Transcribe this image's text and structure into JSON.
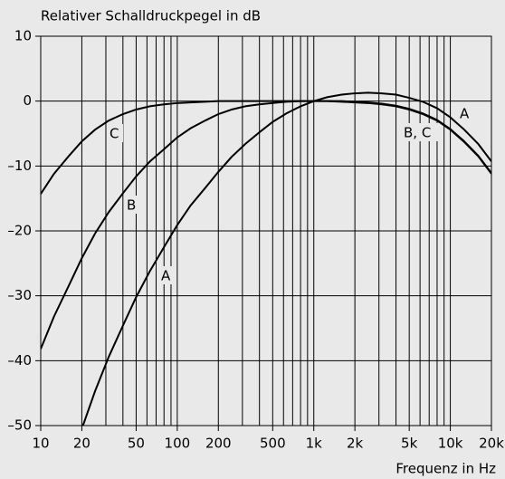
{
  "chart_data": {
    "type": "line",
    "ylabel": "Relativer Schalldruckpegel in dB",
    "xlabel": "Frequenz in Hz",
    "log_x": true,
    "grid": true,
    "xlim": [
      10,
      20000
    ],
    "ylim": [
      -50,
      10
    ],
    "xticks": [
      10,
      20,
      50,
      100,
      200,
      500,
      {
        "value": 1000,
        "label": "1k"
      },
      {
        "value": 2000,
        "label": "2k"
      },
      {
        "value": 5000,
        "label": "5k"
      },
      {
        "value": 10000,
        "label": "10k"
      },
      {
        "value": 20000,
        "label": "20k"
      }
    ],
    "xgrid": [
      10,
      20,
      30,
      40,
      50,
      60,
      70,
      80,
      90,
      100,
      200,
      300,
      400,
      500,
      600,
      700,
      800,
      900,
      1000,
      2000,
      3000,
      4000,
      5000,
      6000,
      7000,
      8000,
      9000,
      10000,
      20000
    ],
    "yticks": [
      10,
      0,
      {
        "value": -10,
        "label": "–10"
      },
      {
        "value": -20,
        "label": "–20"
      },
      {
        "value": -30,
        "label": "–30"
      },
      {
        "value": -40,
        "label": "–40"
      },
      {
        "value": -50,
        "label": "–50"
      }
    ],
    "x": [
      10,
      12.5,
      16,
      20,
      25,
      31.5,
      40,
      50,
      63,
      80,
      100,
      125,
      160,
      200,
      250,
      315,
      400,
      500,
      630,
      800,
      1000,
      1250,
      1600,
      2000,
      2500,
      3150,
      4000,
      5000,
      6300,
      8000,
      10000,
      12500,
      16000,
      20000
    ],
    "series": [
      {
        "name": "A",
        "color": "#000000",
        "values": [
          null,
          null,
          null,
          -50.5,
          -44.7,
          -39.4,
          -34.6,
          -30.2,
          -26.2,
          -22.5,
          -19.1,
          -16.1,
          -13.4,
          -10.9,
          -8.6,
          -6.6,
          -4.8,
          -3.2,
          -1.9,
          -0.8,
          0,
          0.6,
          1.0,
          1.2,
          1.3,
          1.2,
          1.0,
          0.5,
          -0.1,
          -1.1,
          -2.5,
          -4.3,
          -6.6,
          -9.3
        ]
      },
      {
        "name": "B",
        "color": "#000000",
        "values": [
          -38.2,
          -33.2,
          -28.5,
          -24.2,
          -20.4,
          -17.1,
          -14.2,
          -11.6,
          -9.3,
          -7.4,
          -5.6,
          -4.2,
          -3.0,
          -2.0,
          -1.3,
          -0.8,
          -0.5,
          -0.3,
          -0.1,
          0,
          0,
          0,
          0,
          -0.1,
          -0.2,
          -0.4,
          -0.7,
          -1.2,
          -1.9,
          -2.9,
          -4.3,
          -6.1,
          -8.4,
          -11.1
        ]
      },
      {
        "name": "C",
        "color": "#000000",
        "values": [
          -14.3,
          -11.2,
          -8.5,
          -6.2,
          -4.4,
          -3.0,
          -2.0,
          -1.3,
          -0.8,
          -0.5,
          -0.3,
          -0.2,
          -0.1,
          0,
          0,
          0,
          0,
          0,
          0,
          0,
          0,
          0,
          -0.1,
          -0.2,
          -0.3,
          -0.5,
          -0.8,
          -1.3,
          -2.0,
          -3.0,
          -4.4,
          -6.2,
          -8.5,
          -11.2
        ]
      }
    ],
    "annotations": [
      "A",
      "B, C",
      "C",
      "B",
      "A"
    ]
  }
}
